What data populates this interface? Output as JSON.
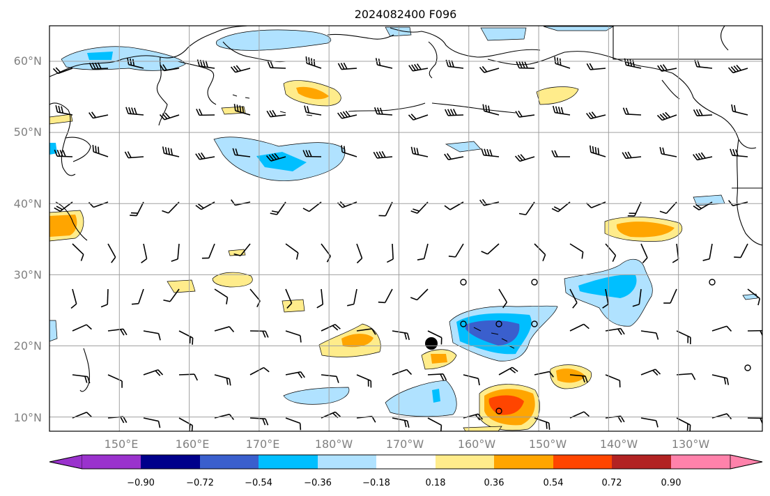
{
  "title": "2024082400 F096",
  "lat_labels": [
    "60°N",
    "50°N",
    "40°N",
    "30°N",
    "20°N",
    "10°N"
  ],
  "lon_labels": [
    "150°E",
    "160°E",
    "170°E",
    "180°W",
    "170°W",
    "160°W",
    "150°W",
    "140°W",
    "130°W"
  ],
  "extent": {
    "lon_min": 140,
    "lon_max": 242,
    "lat_min": 8,
    "lat_max": 65
  },
  "colorbar": {
    "ticks": [
      "−0.90",
      "−0.72",
      "−0.54",
      "−0.36",
      "−0.18",
      "0.18",
      "0.36",
      "0.54",
      "0.72",
      "0.90"
    ],
    "colors": [
      "#9a32cd",
      "#00008b",
      "#3a5fcd",
      "#00bfff",
      "#b0e2ff",
      "#ffffff",
      "#ffec8b",
      "#ffa500",
      "#ff4500",
      "#b22222",
      "#ff82ab"
    ]
  },
  "marker": {
    "label": "storm-center",
    "lon": 194,
    "lat": 20.3
  }
}
